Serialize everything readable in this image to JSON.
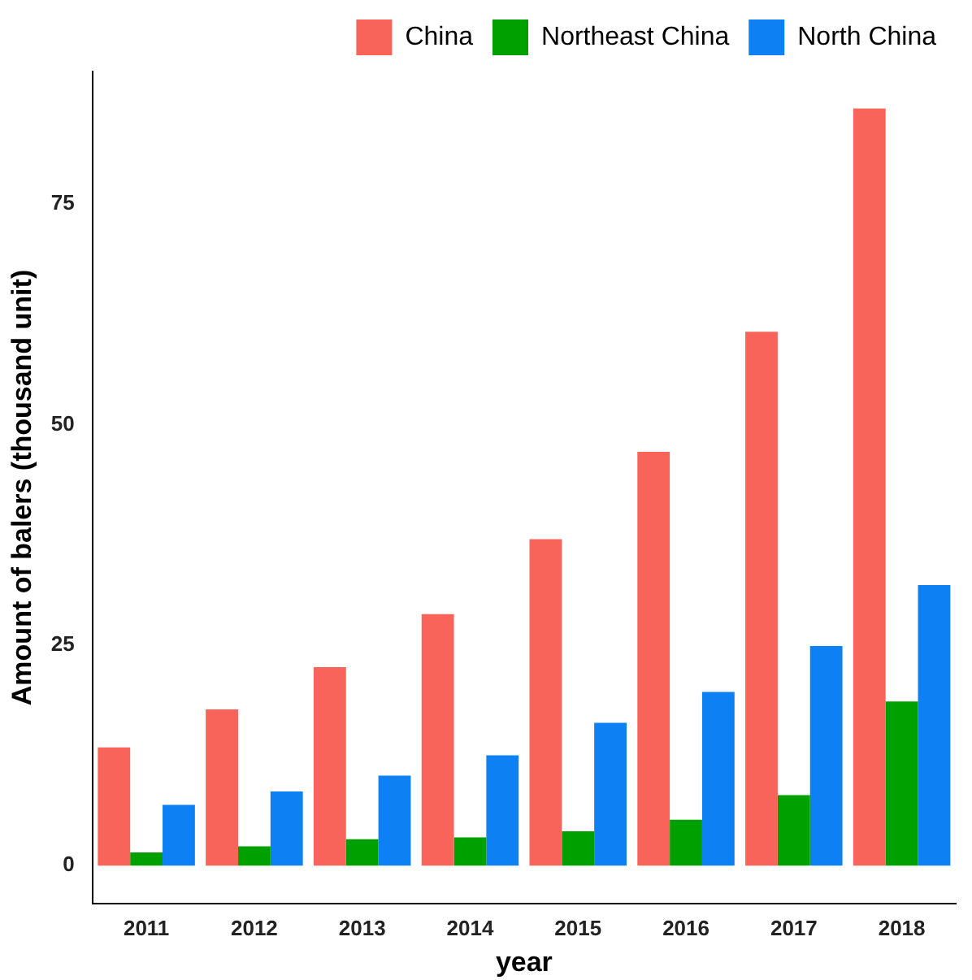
{
  "chart_data": {
    "type": "bar",
    "categories": [
      "2011",
      "2012",
      "2013",
      "2014",
      "2015",
      "2016",
      "2017",
      "2018"
    ],
    "series": [
      {
        "name": "China",
        "color": "#f8645a",
        "values": [
          13.4,
          17.7,
          22.5,
          28.5,
          37.0,
          46.9,
          60.5,
          85.8
        ]
      },
      {
        "name": "Northeast China",
        "color": "#00a000",
        "values": [
          1.5,
          2.2,
          3.0,
          3.2,
          3.9,
          5.2,
          8.0,
          18.6
        ]
      },
      {
        "name": "North China",
        "color": "#0d80f4",
        "values": [
          6.9,
          8.4,
          10.2,
          12.5,
          16.2,
          19.7,
          24.9,
          31.8
        ]
      }
    ],
    "xlabel": "year",
    "ylabel": "Amount of balers (thousand unit)",
    "ylim": [
      -4.3,
      90
    ],
    "yticks": [
      0,
      25,
      50,
      75
    ],
    "grid": false,
    "legend": "top"
  }
}
